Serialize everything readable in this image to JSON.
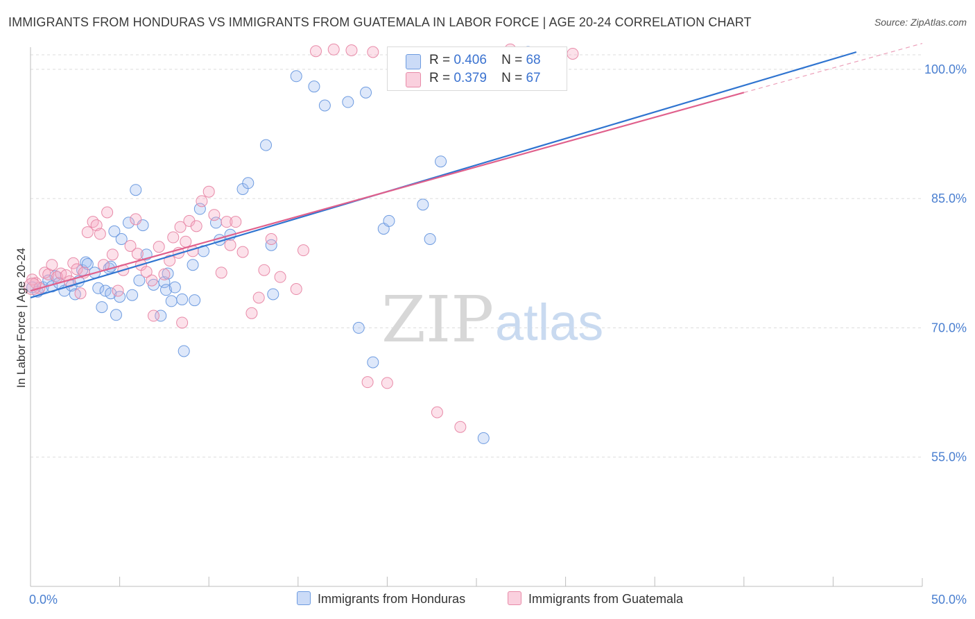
{
  "chart_data": {
    "type": "scatter",
    "title": "IMMIGRANTS FROM HONDURAS VS IMMIGRANTS FROM GUATEMALA IN LABOR FORCE | AGE 20-24 CORRELATION CHART",
    "source": "Source: ZipAtlas.com",
    "ylabel": "In Labor Force | Age 20-24",
    "xlim": [
      0,
      50
    ],
    "ylim": [
      40,
      102
    ],
    "x_tick_labels": [
      "0.0%",
      "50.0%"
    ],
    "y_ticks": [
      55,
      70,
      85,
      100
    ],
    "y_tick_labels": [
      "55.0%",
      "70.0%",
      "85.0%",
      "100.0%"
    ],
    "watermark": {
      "zip": "ZIP",
      "atlas": "atlas"
    },
    "legend": {
      "r_label": "R =",
      "n_label": "N =",
      "rows": [
        {
          "r": "0.406",
          "n": "68"
        },
        {
          "r": "0.379",
          "n": "67"
        }
      ]
    },
    "series": [
      {
        "name": "Immigrants from Honduras",
        "color": "#6d9be0",
        "fill": "rgba(160,190,240,0.35)",
        "line_color": "#2f74d0",
        "trend": {
          "x0": 0,
          "y0": 73.5,
          "x1": 46.3,
          "y1": 102.0
        },
        "points": [
          [
            0.1,
            74.7
          ],
          [
            0.4,
            74.2
          ],
          [
            0.7,
            74.7
          ],
          [
            1.0,
            75.5
          ],
          [
            1.2,
            74.8
          ],
          [
            1.4,
            76.0
          ],
          [
            1.6,
            75.2
          ],
          [
            1.9,
            74.3
          ],
          [
            2.3,
            74.9
          ],
          [
            2.5,
            73.9
          ],
          [
            2.7,
            75.4
          ],
          [
            2.9,
            76.7
          ],
          [
            3.1,
            77.6
          ],
          [
            3.2,
            77.4
          ],
          [
            3.6,
            76.4
          ],
          [
            3.8,
            74.6
          ],
          [
            4.0,
            72.4
          ],
          [
            4.2,
            74.3
          ],
          [
            4.4,
            76.9
          ],
          [
            4.5,
            77.1
          ],
          [
            4.5,
            74.0
          ],
          [
            4.7,
            81.2
          ],
          [
            4.8,
            71.5
          ],
          [
            5.0,
            73.6
          ],
          [
            5.1,
            80.3
          ],
          [
            5.5,
            82.2
          ],
          [
            5.7,
            73.8
          ],
          [
            5.9,
            86.0
          ],
          [
            6.1,
            75.5
          ],
          [
            6.3,
            81.9
          ],
          [
            6.5,
            78.5
          ],
          [
            6.9,
            75.0
          ],
          [
            7.3,
            71.4
          ],
          [
            7.5,
            75.3
          ],
          [
            7.6,
            74.4
          ],
          [
            7.7,
            76.3
          ],
          [
            7.9,
            73.1
          ],
          [
            8.1,
            74.7
          ],
          [
            8.5,
            73.3
          ],
          [
            8.6,
            67.3
          ],
          [
            9.1,
            77.3
          ],
          [
            9.2,
            73.2
          ],
          [
            9.5,
            83.8
          ],
          [
            9.7,
            78.9
          ],
          [
            10.4,
            82.2
          ],
          [
            10.6,
            80.2
          ],
          [
            11.2,
            80.8
          ],
          [
            11.9,
            86.1
          ],
          [
            12.2,
            86.8
          ],
          [
            13.2,
            91.2
          ],
          [
            13.5,
            79.6
          ],
          [
            13.6,
            73.9
          ],
          [
            14.9,
            99.2
          ],
          [
            15.9,
            98.0
          ],
          [
            16.5,
            95.8
          ],
          [
            17.8,
            96.2
          ],
          [
            18.4,
            70.0
          ],
          [
            18.8,
            97.3
          ],
          [
            19.2,
            66.0
          ],
          [
            19.8,
            81.5
          ],
          [
            20.1,
            82.4
          ],
          [
            20.6,
            101.4
          ],
          [
            21.3,
            101.4
          ],
          [
            22.0,
            84.3
          ],
          [
            22.4,
            80.3
          ],
          [
            23.0,
            89.3
          ],
          [
            25.4,
            57.2
          ],
          [
            27.9,
            102.0
          ]
        ]
      },
      {
        "name": "Immigrants from Guatemala",
        "color": "#e88aa8",
        "fill": "rgba(245,170,195,0.35)",
        "line_color": "#e0608c",
        "trend": {
          "x0": 0,
          "y0": 74.3,
          "x1": 40.0,
          "y1": 97.3
        },
        "trend_dash": {
          "x0": 40.0,
          "y0": 97.3,
          "x1": 50.0,
          "y1": 103.0
        },
        "points": [
          [
            0.1,
            75.6
          ],
          [
            0.3,
            75.2
          ],
          [
            0.5,
            74.6
          ],
          [
            0.8,
            76.4
          ],
          [
            1.0,
            76.2
          ],
          [
            1.2,
            77.3
          ],
          [
            1.5,
            75.9
          ],
          [
            1.7,
            76.3
          ],
          [
            2.0,
            76.1
          ],
          [
            2.2,
            75.4
          ],
          [
            2.4,
            77.5
          ],
          [
            2.6,
            76.8
          ],
          [
            2.8,
            74.0
          ],
          [
            3.0,
            76.4
          ],
          [
            3.2,
            81.1
          ],
          [
            3.5,
            82.3
          ],
          [
            3.7,
            81.9
          ],
          [
            3.9,
            80.9
          ],
          [
            4.1,
            77.3
          ],
          [
            4.3,
            83.4
          ],
          [
            4.6,
            78.5
          ],
          [
            4.9,
            74.3
          ],
          [
            5.2,
            76.7
          ],
          [
            5.6,
            79.5
          ],
          [
            5.9,
            82.6
          ],
          [
            6.0,
            78.6
          ],
          [
            6.2,
            77.3
          ],
          [
            6.5,
            76.5
          ],
          [
            6.8,
            75.5
          ],
          [
            6.9,
            71.4
          ],
          [
            7.2,
            79.4
          ],
          [
            7.5,
            76.2
          ],
          [
            7.8,
            77.8
          ],
          [
            8.0,
            80.5
          ],
          [
            8.3,
            78.7
          ],
          [
            8.4,
            81.7
          ],
          [
            8.5,
            70.6
          ],
          [
            8.7,
            80.0
          ],
          [
            8.9,
            82.4
          ],
          [
            9.1,
            78.9
          ],
          [
            9.3,
            81.8
          ],
          [
            9.6,
            84.7
          ],
          [
            10.0,
            85.8
          ],
          [
            10.3,
            83.1
          ],
          [
            10.7,
            76.4
          ],
          [
            11.0,
            82.3
          ],
          [
            11.2,
            79.6
          ],
          [
            11.5,
            82.3
          ],
          [
            11.9,
            78.8
          ],
          [
            12.4,
            71.7
          ],
          [
            12.8,
            73.5
          ],
          [
            13.1,
            76.7
          ],
          [
            13.5,
            80.3
          ],
          [
            14.0,
            75.9
          ],
          [
            14.9,
            74.5
          ],
          [
            15.3,
            79.0
          ],
          [
            16.0,
            102.1
          ],
          [
            17.0,
            102.3
          ],
          [
            18.0,
            102.2
          ],
          [
            18.9,
            63.7
          ],
          [
            19.2,
            102.0
          ],
          [
            20.0,
            63.6
          ],
          [
            21.0,
            101.5
          ],
          [
            22.8,
            60.2
          ],
          [
            24.1,
            58.5
          ],
          [
            26.9,
            102.3
          ],
          [
            30.4,
            101.8
          ]
        ]
      }
    ]
  }
}
